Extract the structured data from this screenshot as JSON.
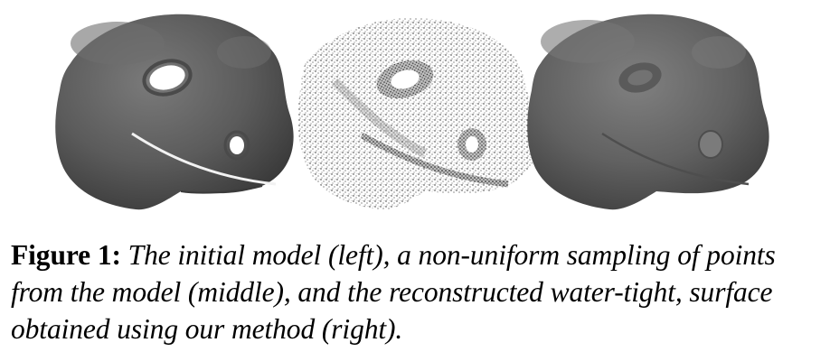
{
  "figure": {
    "label": "Figure 1:",
    "caption": "The initial model (left), a non-uniform sampling of points from the model (middle), and the reconstructed water-tight, surface obtained using our method (right)."
  },
  "panels": [
    {
      "position": "left",
      "icon": "shaded-lizard-head-model"
    },
    {
      "position": "middle",
      "icon": "point-sampled-lizard-head"
    },
    {
      "position": "right",
      "icon": "reconstructed-lizard-head-surface"
    }
  ]
}
